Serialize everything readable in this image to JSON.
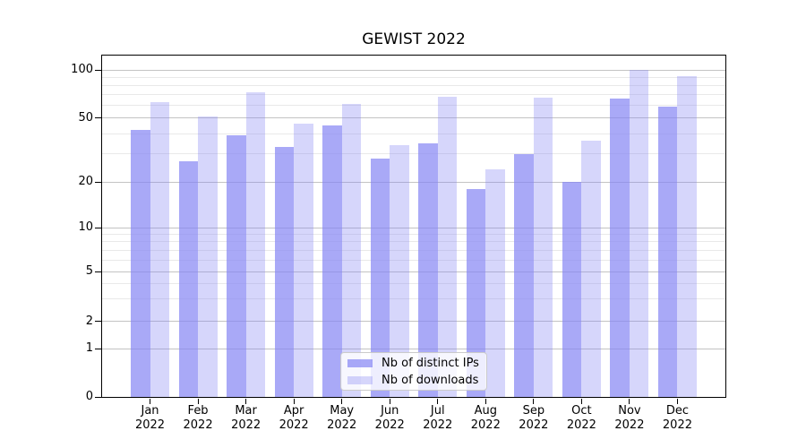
{
  "figure": {
    "title": "GEWIST 2022"
  },
  "chart_data": {
    "type": "bar",
    "title": "GEWIST 2022",
    "categories": [
      "Jan",
      "Feb",
      "Mar",
      "Apr",
      "May",
      "Jun",
      "Jul",
      "Aug",
      "Sep",
      "Oct",
      "Nov",
      "Dec"
    ],
    "xtick_year": "2022",
    "series": [
      {
        "name": "Nb of distinct IPs",
        "values": [
          42,
          27,
          39,
          33,
          45,
          28,
          35,
          18,
          30,
          20,
          66,
          59
        ]
      },
      {
        "name": "Nb of downloads",
        "values": [
          63,
          51,
          73,
          46,
          61,
          34,
          68,
          24,
          67,
          36,
          100,
          92
        ]
      }
    ],
    "yscale": "symlog",
    "ylim": [
      0,
      125
    ],
    "ytick_values": [
      0,
      1,
      2,
      5,
      10,
      20,
      50,
      100
    ],
    "ytick_labels": [
      "0",
      "1",
      "2",
      "5",
      "10",
      "20",
      "50",
      "100"
    ],
    "minor_gridline_values": [
      3,
      4,
      6,
      7,
      8,
      9,
      30,
      40,
      60,
      70,
      80,
      90
    ],
    "grid": true,
    "legend_position": "lower center",
    "colors": {
      "bar_base": "#8484f4",
      "series_alpha": [
        0.7,
        0.33
      ],
      "bar_dark_rendered": "#a9a9f7",
      "bar_light_rendered": "#d8d8f8",
      "grid_major": "#c3c3c3",
      "grid_minor": "#e9e9e9",
      "axis": "#000000"
    }
  }
}
